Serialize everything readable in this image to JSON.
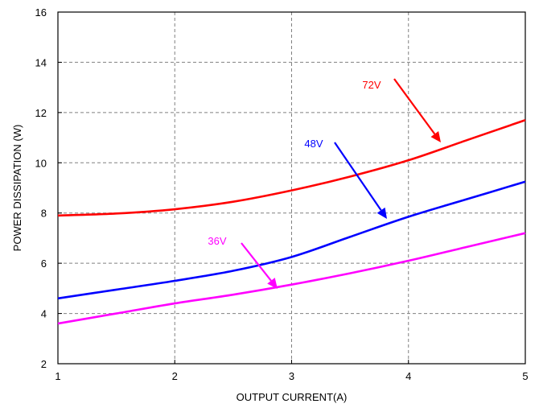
{
  "chart_data": {
    "type": "line",
    "title": "",
    "xlabel": "OUTPUT CURRENT(A)",
    "ylabel": "POWER DISSIPATION (W)",
    "xlim": [
      1,
      5
    ],
    "ylim": [
      2,
      16
    ],
    "xticks": [
      1,
      2,
      3,
      4,
      5
    ],
    "yticks": [
      2,
      4,
      6,
      8,
      10,
      12,
      14,
      16
    ],
    "grid": true,
    "legend": "none",
    "series": [
      {
        "name": "72V",
        "color": "#ff0000",
        "x": [
          1,
          1.5,
          2,
          2.5,
          3,
          3.5,
          4,
          4.5,
          5
        ],
        "y": [
          7.9,
          7.98,
          8.15,
          8.45,
          8.9,
          9.45,
          10.1,
          10.9,
          11.7
        ]
      },
      {
        "name": "48V",
        "color": "#0000ff",
        "x": [
          1,
          1.5,
          2,
          2.5,
          3,
          3.5,
          4,
          4.5,
          5
        ],
        "y": [
          4.6,
          4.95,
          5.3,
          5.7,
          6.25,
          7.05,
          7.85,
          8.55,
          9.25
        ]
      },
      {
        "name": "36V",
        "color": "#ff00ff",
        "x": [
          1,
          1.5,
          2,
          2.5,
          3,
          3.5,
          4,
          4.5,
          5
        ],
        "y": [
          3.6,
          4.0,
          4.4,
          4.75,
          5.15,
          5.6,
          6.1,
          6.65,
          7.2
        ]
      }
    ]
  }
}
